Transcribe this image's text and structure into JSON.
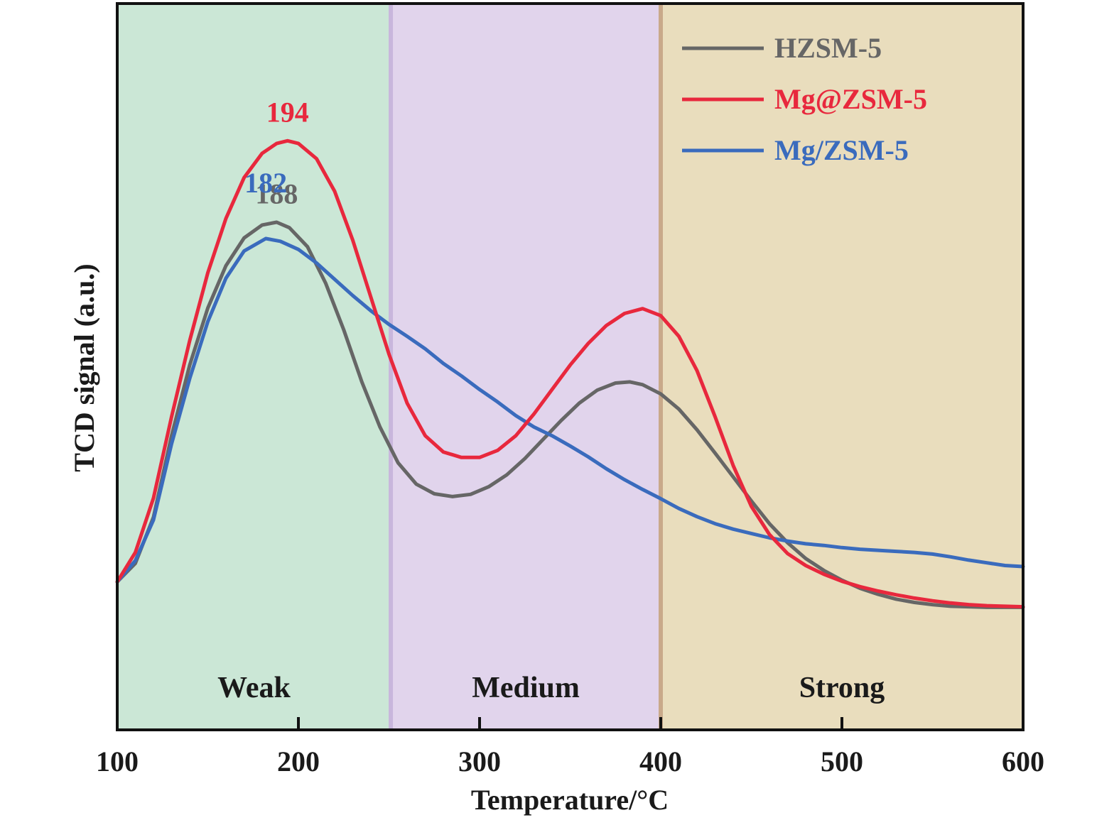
{
  "chart_data": {
    "type": "line",
    "xlabel": "Temperature/°C",
    "ylabel": "TCD signal (a.u.)",
    "xlim": [
      100,
      600
    ],
    "xticks": [
      "100",
      "200",
      "300",
      "400",
      "500",
      "600"
    ],
    "ylim": [
      0,
      100
    ],
    "yticks_shown": false,
    "grid": false,
    "legend_position": "top-right",
    "regions": [
      {
        "name": "Weak",
        "from": 100,
        "to": 251,
        "color": "#cbe7d6",
        "border": "#b7dcc6"
      },
      {
        "name": "Medium",
        "from": 251,
        "to": 400,
        "color": "#e1d4ec",
        "border": "#c8b6dc"
      },
      {
        "name": "Strong",
        "from": 400,
        "to": 600,
        "color": "#e9ddbd",
        "border": "#c9a98a"
      }
    ],
    "series": [
      {
        "name": "HZSM-5",
        "color": "#666666",
        "peak_label": "188",
        "peak_x": 188,
        "peak_label_dy": -3.5,
        "points": [
          [
            100,
            23.6
          ],
          [
            110,
            27.0
          ],
          [
            120,
            35.5
          ],
          [
            130,
            50.5
          ],
          [
            140,
            63.5
          ],
          [
            150,
            74.0
          ],
          [
            160,
            81.8
          ],
          [
            170,
            86.9
          ],
          [
            180,
            89.3
          ],
          [
            188,
            89.8
          ],
          [
            195,
            88.8
          ],
          [
            205,
            85.3
          ],
          [
            215,
            78.6
          ],
          [
            225,
            70.0
          ],
          [
            235,
            60.4
          ],
          [
            245,
            52.1
          ],
          [
            255,
            45.5
          ],
          [
            265,
            41.6
          ],
          [
            275,
            39.8
          ],
          [
            285,
            39.3
          ],
          [
            295,
            39.7
          ],
          [
            305,
            41.1
          ],
          [
            315,
            43.3
          ],
          [
            325,
            46.3
          ],
          [
            335,
            49.8
          ],
          [
            345,
            53.3
          ],
          [
            355,
            56.5
          ],
          [
            365,
            58.9
          ],
          [
            375,
            60.2
          ],
          [
            383,
            60.4
          ],
          [
            390,
            59.9
          ],
          [
            400,
            58.2
          ],
          [
            410,
            55.4
          ],
          [
            420,
            51.6
          ],
          [
            430,
            47.3
          ],
          [
            440,
            42.9
          ],
          [
            450,
            38.5
          ],
          [
            460,
            34.3
          ],
          [
            470,
            30.8
          ],
          [
            480,
            27.9
          ],
          [
            490,
            25.7
          ],
          [
            500,
            23.9
          ],
          [
            510,
            22.4
          ],
          [
            520,
            21.3
          ],
          [
            530,
            20.4
          ],
          [
            540,
            19.8
          ],
          [
            550,
            19.4
          ],
          [
            560,
            19.1
          ],
          [
            570,
            19.0
          ],
          [
            580,
            18.9
          ],
          [
            590,
            18.9
          ],
          [
            600,
            18.9
          ]
        ]
      },
      {
        "name": "Mg@ZSM-5",
        "color": "#e8283d",
        "peak_label": "194",
        "peak_x": 194,
        "peak_label_dy": -3.5,
        "points": [
          [
            100,
            23.6
          ],
          [
            110,
            29.0
          ],
          [
            120,
            39.0
          ],
          [
            130,
            54.0
          ],
          [
            140,
            68.0
          ],
          [
            150,
            80.5
          ],
          [
            160,
            90.5
          ],
          [
            170,
            98.0
          ],
          [
            180,
            102.5
          ],
          [
            188,
            104.3
          ],
          [
            194,
            104.8
          ],
          [
            200,
            104.3
          ],
          [
            210,
            101.5
          ],
          [
            220,
            95.5
          ],
          [
            230,
            86.5
          ],
          [
            240,
            76.0
          ],
          [
            250,
            65.5
          ],
          [
            260,
            56.5
          ],
          [
            270,
            50.5
          ],
          [
            280,
            47.5
          ],
          [
            290,
            46.5
          ],
          [
            300,
            46.5
          ],
          [
            310,
            47.8
          ],
          [
            320,
            50.5
          ],
          [
            330,
            54.5
          ],
          [
            340,
            59.0
          ],
          [
            350,
            63.5
          ],
          [
            360,
            67.5
          ],
          [
            370,
            70.8
          ],
          [
            380,
            73.0
          ],
          [
            390,
            73.9
          ],
          [
            400,
            72.6
          ],
          [
            410,
            68.8
          ],
          [
            420,
            62.5
          ],
          [
            430,
            54.0
          ],
          [
            440,
            45.0
          ],
          [
            450,
            37.5
          ],
          [
            460,
            32.3
          ],
          [
            470,
            28.8
          ],
          [
            480,
            26.6
          ],
          [
            490,
            25.0
          ],
          [
            500,
            23.7
          ],
          [
            510,
            22.7
          ],
          [
            520,
            21.9
          ],
          [
            530,
            21.2
          ],
          [
            540,
            20.6
          ],
          [
            550,
            20.1
          ],
          [
            560,
            19.7
          ],
          [
            570,
            19.4
          ],
          [
            580,
            19.2
          ],
          [
            590,
            19.1
          ],
          [
            600,
            19.0
          ]
        ]
      },
      {
        "name": "Mg/ZSM-5",
        "color": "#3a6bbd",
        "peak_label": "182",
        "peak_x": 182,
        "peak_label_dy": -8.5,
        "points": [
          [
            100,
            23.6
          ],
          [
            110,
            27.5
          ],
          [
            120,
            35.0
          ],
          [
            130,
            49.0
          ],
          [
            140,
            61.0
          ],
          [
            150,
            71.5
          ],
          [
            160,
            79.5
          ],
          [
            170,
            84.5
          ],
          [
            182,
            86.8
          ],
          [
            190,
            86.3
          ],
          [
            200,
            84.8
          ],
          [
            210,
            82.3
          ],
          [
            220,
            79.3
          ],
          [
            230,
            76.3
          ],
          [
            240,
            73.5
          ],
          [
            250,
            71.0
          ],
          [
            260,
            68.8
          ],
          [
            270,
            66.5
          ],
          [
            280,
            63.8
          ],
          [
            290,
            61.5
          ],
          [
            300,
            59.0
          ],
          [
            310,
            56.7
          ],
          [
            320,
            54.2
          ],
          [
            330,
            52.1
          ],
          [
            340,
            50.5
          ],
          [
            350,
            48.6
          ],
          [
            360,
            46.6
          ],
          [
            370,
            44.4
          ],
          [
            380,
            42.4
          ],
          [
            390,
            40.6
          ],
          [
            400,
            38.9
          ],
          [
            410,
            37.1
          ],
          [
            420,
            35.6
          ],
          [
            430,
            34.3
          ],
          [
            440,
            33.3
          ],
          [
            450,
            32.5
          ],
          [
            460,
            31.7
          ],
          [
            470,
            31.1
          ],
          [
            480,
            30.6
          ],
          [
            490,
            30.3
          ],
          [
            500,
            29.9
          ],
          [
            510,
            29.6
          ],
          [
            520,
            29.4
          ],
          [
            530,
            29.2
          ],
          [
            540,
            29.0
          ],
          [
            550,
            28.7
          ],
          [
            560,
            28.2
          ],
          [
            570,
            27.6
          ],
          [
            580,
            27.1
          ],
          [
            590,
            26.6
          ],
          [
            600,
            26.4
          ]
        ]
      }
    ]
  }
}
